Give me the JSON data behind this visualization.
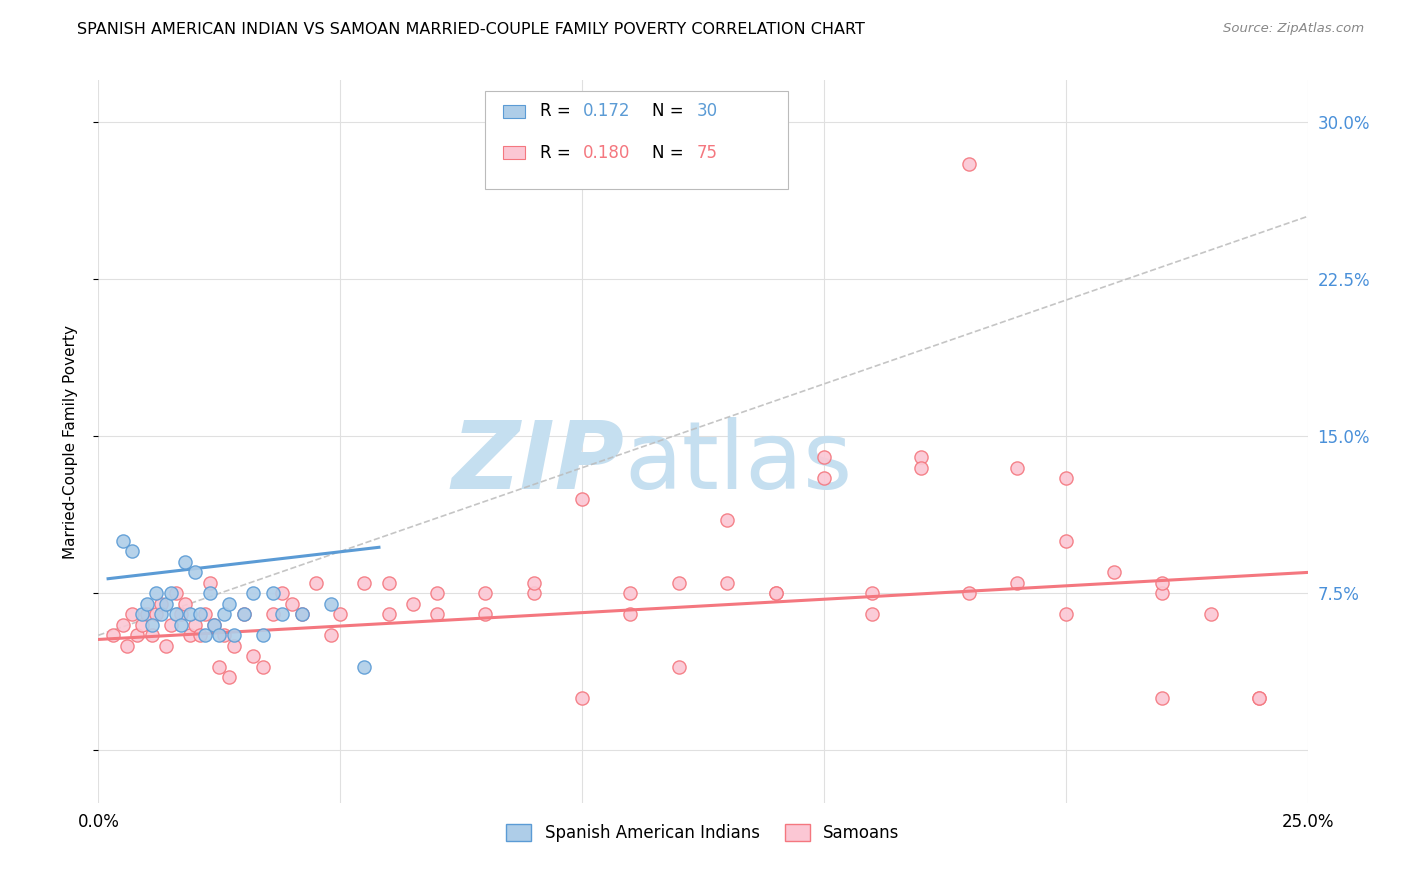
{
  "title": "SPANISH AMERICAN INDIAN VS SAMOAN MARRIED-COUPLE FAMILY POVERTY CORRELATION CHART",
  "source": "Source: ZipAtlas.com",
  "ylabel": "Married-Couple Family Poverty",
  "xlim": [
    0.0,
    0.25
  ],
  "ylim": [
    -0.025,
    0.32
  ],
  "xticks": [
    0.0,
    0.05,
    0.1,
    0.15,
    0.2,
    0.25
  ],
  "xticklabels": [
    "0.0%",
    "",
    "",
    "",
    "",
    "25.0%"
  ],
  "yticks": [
    0.0,
    0.075,
    0.15,
    0.225,
    0.3
  ],
  "yticklabels": [
    "",
    "7.5%",
    "15.0%",
    "22.5%",
    "30.0%"
  ],
  "legend1_r": "0.172",
  "legend1_n": "30",
  "legend2_r": "0.180",
  "legend2_n": "75",
  "color_blue_fill": "#aecde8",
  "color_blue_edge": "#5b9bd5",
  "color_pink_fill": "#fbc7d4",
  "color_pink_edge": "#f4777f",
  "color_blue_line": "#5b9bd5",
  "color_pink_line": "#f4777f",
  "watermark_zip_color": "#c5dff0",
  "watermark_atlas_color": "#c5dff0",
  "grid_color": "#e0e0e0",
  "blue_scatter_x": [
    0.005,
    0.007,
    0.009,
    0.01,
    0.011,
    0.012,
    0.013,
    0.014,
    0.015,
    0.016,
    0.017,
    0.018,
    0.019,
    0.02,
    0.021,
    0.022,
    0.023,
    0.024,
    0.025,
    0.026,
    0.027,
    0.028,
    0.03,
    0.032,
    0.034,
    0.036,
    0.038,
    0.042,
    0.048,
    0.055
  ],
  "blue_scatter_y": [
    0.1,
    0.095,
    0.065,
    0.07,
    0.06,
    0.075,
    0.065,
    0.07,
    0.075,
    0.065,
    0.06,
    0.09,
    0.065,
    0.085,
    0.065,
    0.055,
    0.075,
    0.06,
    0.055,
    0.065,
    0.07,
    0.055,
    0.065,
    0.075,
    0.055,
    0.075,
    0.065,
    0.065,
    0.07,
    0.04
  ],
  "blue_line_x": [
    0.002,
    0.058
  ],
  "blue_line_y": [
    0.082,
    0.097
  ],
  "pink_scatter_x": [
    0.003,
    0.005,
    0.006,
    0.007,
    0.008,
    0.009,
    0.01,
    0.011,
    0.012,
    0.013,
    0.014,
    0.015,
    0.016,
    0.017,
    0.018,
    0.019,
    0.02,
    0.021,
    0.022,
    0.023,
    0.024,
    0.025,
    0.026,
    0.027,
    0.028,
    0.03,
    0.032,
    0.034,
    0.036,
    0.038,
    0.04,
    0.042,
    0.045,
    0.048,
    0.05,
    0.055,
    0.06,
    0.065,
    0.07,
    0.08,
    0.09,
    0.1,
    0.11,
    0.12,
    0.13,
    0.14,
    0.15,
    0.16,
    0.18,
    0.19,
    0.2,
    0.21,
    0.22,
    0.23,
    0.24,
    0.17,
    0.19,
    0.2,
    0.22,
    0.24,
    0.1,
    0.11,
    0.12,
    0.14,
    0.16,
    0.18,
    0.2,
    0.22,
    0.13,
    0.15,
    0.17,
    0.09,
    0.08,
    0.07,
    0.06
  ],
  "pink_scatter_y": [
    0.055,
    0.06,
    0.05,
    0.065,
    0.055,
    0.06,
    0.065,
    0.055,
    0.065,
    0.07,
    0.05,
    0.06,
    0.075,
    0.065,
    0.07,
    0.055,
    0.06,
    0.055,
    0.065,
    0.08,
    0.06,
    0.04,
    0.055,
    0.035,
    0.05,
    0.065,
    0.045,
    0.04,
    0.065,
    0.075,
    0.07,
    0.065,
    0.08,
    0.055,
    0.065,
    0.08,
    0.065,
    0.07,
    0.065,
    0.075,
    0.075,
    0.025,
    0.065,
    0.04,
    0.08,
    0.075,
    0.14,
    0.075,
    0.075,
    0.08,
    0.065,
    0.085,
    0.075,
    0.065,
    0.025,
    0.14,
    0.135,
    0.13,
    0.025,
    0.025,
    0.12,
    0.075,
    0.08,
    0.075,
    0.065,
    0.28,
    0.1,
    0.08,
    0.11,
    0.13,
    0.135,
    0.08,
    0.065,
    0.075,
    0.08
  ],
  "pink_line_x": [
    0.0,
    0.25
  ],
  "pink_line_y": [
    0.053,
    0.085
  ],
  "gray_line_x": [
    0.0,
    0.25
  ],
  "gray_line_y": [
    0.055,
    0.255
  ]
}
